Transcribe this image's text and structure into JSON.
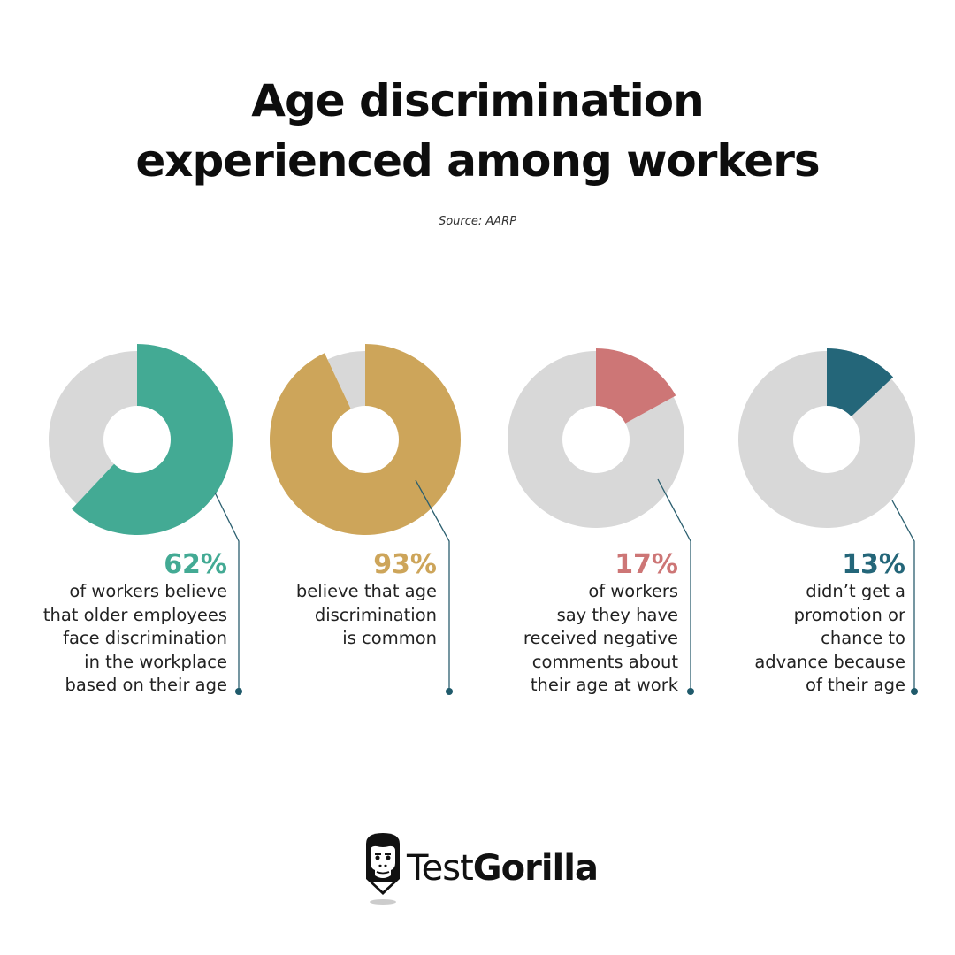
{
  "title_line1": "Age discrimination",
  "title_line2": "experienced among workers",
  "source": "Source: AARP",
  "colors": {
    "teal": "#43aa94",
    "gold": "#cda55a",
    "rose": "#cd7676",
    "navy": "#246679",
    "gray": "#d8d8d8",
    "connector": "#2b5f6f"
  },
  "stats": [
    {
      "percent": "62%",
      "lines": [
        "of workers believe",
        "that older employees",
        "face discrimination",
        "in the workplace",
        "based on their age"
      ],
      "color": "#43aa94"
    },
    {
      "percent": "93%",
      "lines": [
        "believe that age",
        "discrimination",
        "is common"
      ],
      "color": "#cda55a"
    },
    {
      "percent": "17%",
      "lines": [
        "of workers",
        "say they have",
        "received negative",
        "comments about",
        "their age at work"
      ],
      "color": "#cd7676"
    },
    {
      "percent": "13%",
      "lines": [
        "didn’t get a",
        "promotion or",
        "chance to",
        "advance because",
        "of their age"
      ],
      "color": "#246679"
    }
  ],
  "logo": {
    "part1": "Test",
    "part2": "Gorilla"
  },
  "chart_data": {
    "type": "pie",
    "title": "Age discrimination experienced among workers",
    "subtitle": "Source: AARP",
    "categories": [
      "Workers believe older employees face discrimination in the workplace based on their age",
      "Believe that age discrimination is common",
      "Workers say they have received negative comments about their age at work",
      "Didn't get a promotion or chance to advance because of their age"
    ],
    "values": [
      62,
      93,
      17,
      13
    ],
    "unit": "%",
    "charts": [
      {
        "label": "62%",
        "value": 62,
        "remainder": 38,
        "color": "#43aa94"
      },
      {
        "label": "93%",
        "value": 93,
        "remainder": 7,
        "color": "#cda55a"
      },
      {
        "label": "17%",
        "value": 17,
        "remainder": 83,
        "color": "#cd7676"
      },
      {
        "label": "13%",
        "value": 13,
        "remainder": 87,
        "color": "#246679"
      }
    ]
  }
}
